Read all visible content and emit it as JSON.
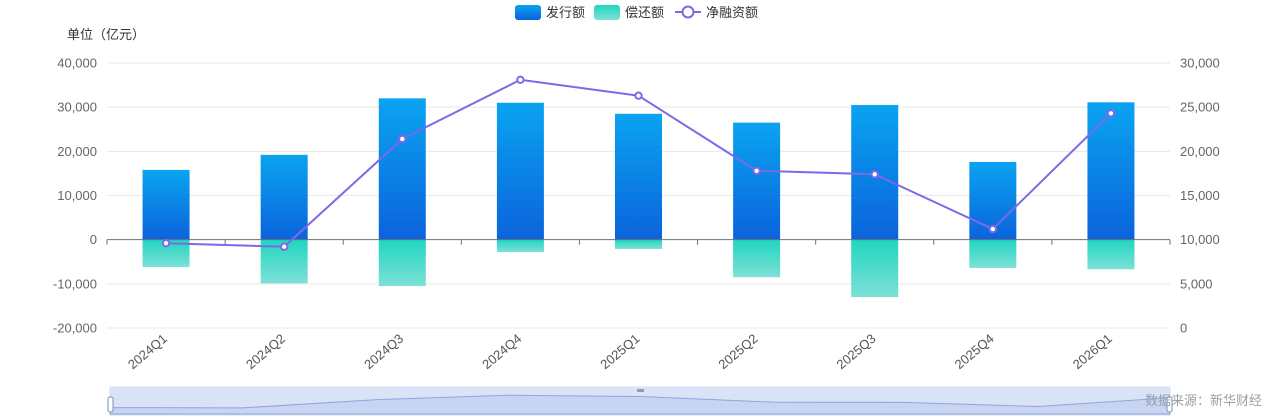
{
  "chart_data": {
    "type": "bar",
    "unit_label": "单位（亿元）",
    "categories": [
      "2024Q1",
      "2024Q2",
      "2024Q3",
      "2024Q4",
      "2025Q1",
      "2025Q2",
      "2025Q3",
      "2025Q4",
      "2026Q1"
    ],
    "series": [
      {
        "name": "发行额",
        "type": "bar",
        "axis": "left",
        "color": "#1a7fe8",
        "values": [
          15800,
          19200,
          32000,
          31000,
          28500,
          26500,
          30500,
          17600,
          31100
        ]
      },
      {
        "name": "偿还额",
        "type": "bar",
        "axis": "left",
        "color": "#3ad8c4",
        "values": [
          -6200,
          -9900,
          -10500,
          -2800,
          -2100,
          -8500,
          -13000,
          -6400,
          -6700
        ]
      },
      {
        "name": "净融资额",
        "type": "line",
        "axis": "right",
        "color": "#7b6ae8",
        "values": [
          9600,
          9200,
          21400,
          28100,
          26300,
          17800,
          17400,
          11200,
          24300
        ]
      }
    ],
    "y_left": {
      "min": -20000,
      "max": 40000,
      "ticks": [
        "40,000",
        "30,000",
        "20,000",
        "10,000",
        "0",
        "-10,000",
        "-20,000"
      ]
    },
    "y_right": {
      "min": 0,
      "max": 30000,
      "ticks": [
        "30,000",
        "25,000",
        "20,000",
        "15,000",
        "10,000",
        "5,000",
        "0"
      ]
    },
    "legend_position": "top-center",
    "grid": true,
    "source": "数据来源：新华财经"
  }
}
